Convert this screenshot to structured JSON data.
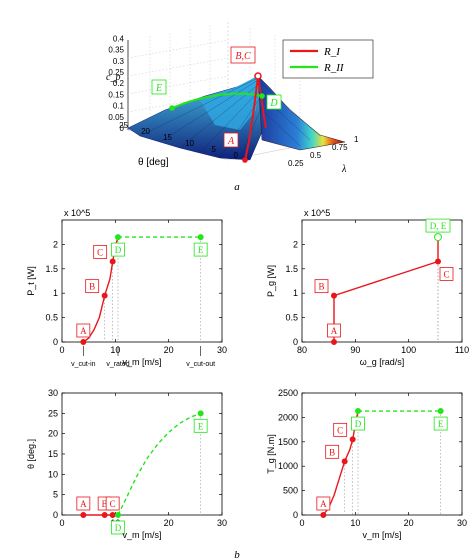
{
  "captions": {
    "top": "a",
    "bottom": "b"
  },
  "chart_data": [
    {
      "id": "cp_surface",
      "type": "surface3d",
      "zlabel": "c_p",
      "xlabel": "θ [deg]",
      "ylabel": "λ",
      "z_ticks": [
        "0",
        "0.05",
        "0.1",
        "0.15",
        "0.2",
        "0.25",
        "0.3",
        "0.35",
        "0.4"
      ],
      "x_ticks": [
        "0",
        "5",
        "10",
        "15",
        "20",
        "25"
      ],
      "y_ticks": [
        "0.25",
        "0.5",
        "0.75",
        "1"
      ],
      "legend": [
        {
          "name": "R_I",
          "color": "#e8171b"
        },
        {
          "name": "R_II",
          "color": "#22e61a"
        }
      ],
      "point_labels": {
        "A": "A",
        "BC": "B,C",
        "D": "D",
        "E": "E"
      }
    },
    {
      "id": "pt_vs_vm",
      "type": "line",
      "xlabel": "v_m [m/s]",
      "ylabel": "P_t [W]",
      "exponent": "x 10^5",
      "xlim": [
        0,
        30
      ],
      "ylim": [
        0,
        2.5
      ],
      "x_ticks": [
        0,
        10,
        20,
        30
      ],
      "y_ticks": [
        0,
        0.5,
        1,
        1.5,
        2
      ],
      "axis_notes": {
        "cut_in": "v_cut-in",
        "rated": "v_rated",
        "cut_out": "v_cut-out"
      },
      "series": [
        {
          "name": "R_I",
          "color": "#e8171b",
          "dash": false,
          "points": [
            [
              4,
              0
            ],
            [
              5,
              0.08
            ],
            [
              6,
              0.25
            ],
            [
              7,
              0.5
            ],
            [
              8,
              0.95
            ],
            [
              9,
              1.3
            ],
            [
              9.5,
              1.65
            ],
            [
              10,
              1.95
            ],
            [
              10.5,
              2.15
            ]
          ]
        },
        {
          "name": "R_II",
          "color": "#22e61a",
          "dash": true,
          "points": [
            [
              10.5,
              2.15
            ],
            [
              26,
              2.15
            ]
          ]
        }
      ],
      "labels": [
        {
          "text": "A",
          "x": 4,
          "y": 0,
          "color": "#e8171b"
        },
        {
          "text": "B",
          "x": 8,
          "y": 0.95,
          "color": "#e8171b"
        },
        {
          "text": "C",
          "x": 9.5,
          "y": 1.65,
          "color": "#e8171b"
        },
        {
          "text": "D",
          "x": 10.5,
          "y": 2.15,
          "color": "#22e61a"
        },
        {
          "text": "E",
          "x": 26,
          "y": 2.15,
          "color": "#22e61a"
        }
      ]
    },
    {
      "id": "pg_vs_wg",
      "type": "line",
      "xlabel": "ω_g [rad/s]",
      "ylabel": "P_g [W]",
      "exponent": "x 10^5",
      "xlim": [
        80,
        110
      ],
      "ylim": [
        0,
        2.5
      ],
      "x_ticks": [
        80,
        90,
        100,
        110
      ],
      "y_ticks": [
        0,
        0.5,
        1,
        1.5,
        2
      ],
      "series": [
        {
          "name": "R_I",
          "color": "#e8171b",
          "dash": false,
          "points": [
            [
              86,
              0
            ],
            [
              86,
              0.95
            ],
            [
              105.5,
              1.65
            ],
            [
              105.5,
              2.15
            ]
          ]
        }
      ],
      "labels": [
        {
          "text": "A",
          "x": 86,
          "y": 0,
          "color": "#e8171b"
        },
        {
          "text": "B",
          "x": 86,
          "y": 0.95,
          "color": "#e8171b"
        },
        {
          "text": "C",
          "x": 105.5,
          "y": 1.65,
          "color": "#e8171b"
        },
        {
          "text": "D, E",
          "x": 105.5,
          "y": 2.15,
          "color": "#22e61a"
        }
      ]
    },
    {
      "id": "theta_vs_vm",
      "type": "line",
      "xlabel": "v_m [m/s]",
      "ylabel": "θ [deg.]",
      "xlim": [
        0,
        30
      ],
      "ylim": [
        0,
        30
      ],
      "x_ticks": [
        0,
        10,
        20,
        30
      ],
      "y_ticks": [
        0,
        5,
        10,
        15,
        20,
        25,
        30
      ],
      "series": [
        {
          "name": "R_I",
          "color": "#e8171b",
          "dash": false,
          "points": [
            [
              4,
              0
            ],
            [
              10.5,
              0
            ]
          ]
        },
        {
          "name": "R_II",
          "color": "#22e61a",
          "dash": true,
          "points": [
            [
              10.5,
              0
            ],
            [
              12,
              4
            ],
            [
              14,
              9.5
            ],
            [
              16,
              14
            ],
            [
              18,
              17.5
            ],
            [
              20,
              20.3
            ],
            [
              22,
              22.5
            ],
            [
              24,
              24
            ],
            [
              26,
              25
            ]
          ]
        }
      ],
      "labels": [
        {
          "text": "A",
          "x": 4,
          "y": 0,
          "color": "#e8171b"
        },
        {
          "text": "B",
          "x": 8,
          "y": 0,
          "color": "#e8171b"
        },
        {
          "text": "C",
          "x": 9.5,
          "y": 0,
          "color": "#e8171b"
        },
        {
          "text": "D",
          "x": 10.5,
          "y": 0,
          "color": "#22e61a"
        },
        {
          "text": "E",
          "x": 26,
          "y": 25,
          "color": "#22e61a"
        }
      ]
    },
    {
      "id": "tg_vs_vm",
      "type": "line",
      "xlabel": "v_m [m/s]",
      "ylabel": "T_g [N.m]",
      "xlim": [
        0,
        30
      ],
      "ylim": [
        0,
        2500
      ],
      "x_ticks": [
        0,
        10,
        20,
        30
      ],
      "y_ticks": [
        0,
        500,
        1000,
        1500,
        2000,
        2500
      ],
      "series": [
        {
          "name": "R_I",
          "color": "#e8171b",
          "dash": false,
          "points": [
            [
              4,
              0
            ],
            [
              5,
              150
            ],
            [
              6,
              400
            ],
            [
              7,
              750
            ],
            [
              8,
              1100
            ],
            [
              9,
              1350
            ],
            [
              9.5,
              1550
            ],
            [
              10,
              1850
            ],
            [
              10.5,
              2130
            ]
          ]
        },
        {
          "name": "R_II",
          "color": "#22e61a",
          "dash": true,
          "points": [
            [
              10.5,
              2130
            ],
            [
              26,
              2130
            ]
          ]
        }
      ],
      "labels": [
        {
          "text": "A",
          "x": 4,
          "y": 0,
          "color": "#e8171b"
        },
        {
          "text": "B",
          "x": 8,
          "y": 1100,
          "color": "#e8171b"
        },
        {
          "text": "C",
          "x": 9.5,
          "y": 1550,
          "color": "#e8171b"
        },
        {
          "text": "D",
          "x": 10.5,
          "y": 2130,
          "color": "#22e61a"
        },
        {
          "text": "E",
          "x": 26,
          "y": 2130,
          "color": "#22e61a"
        }
      ]
    }
  ]
}
